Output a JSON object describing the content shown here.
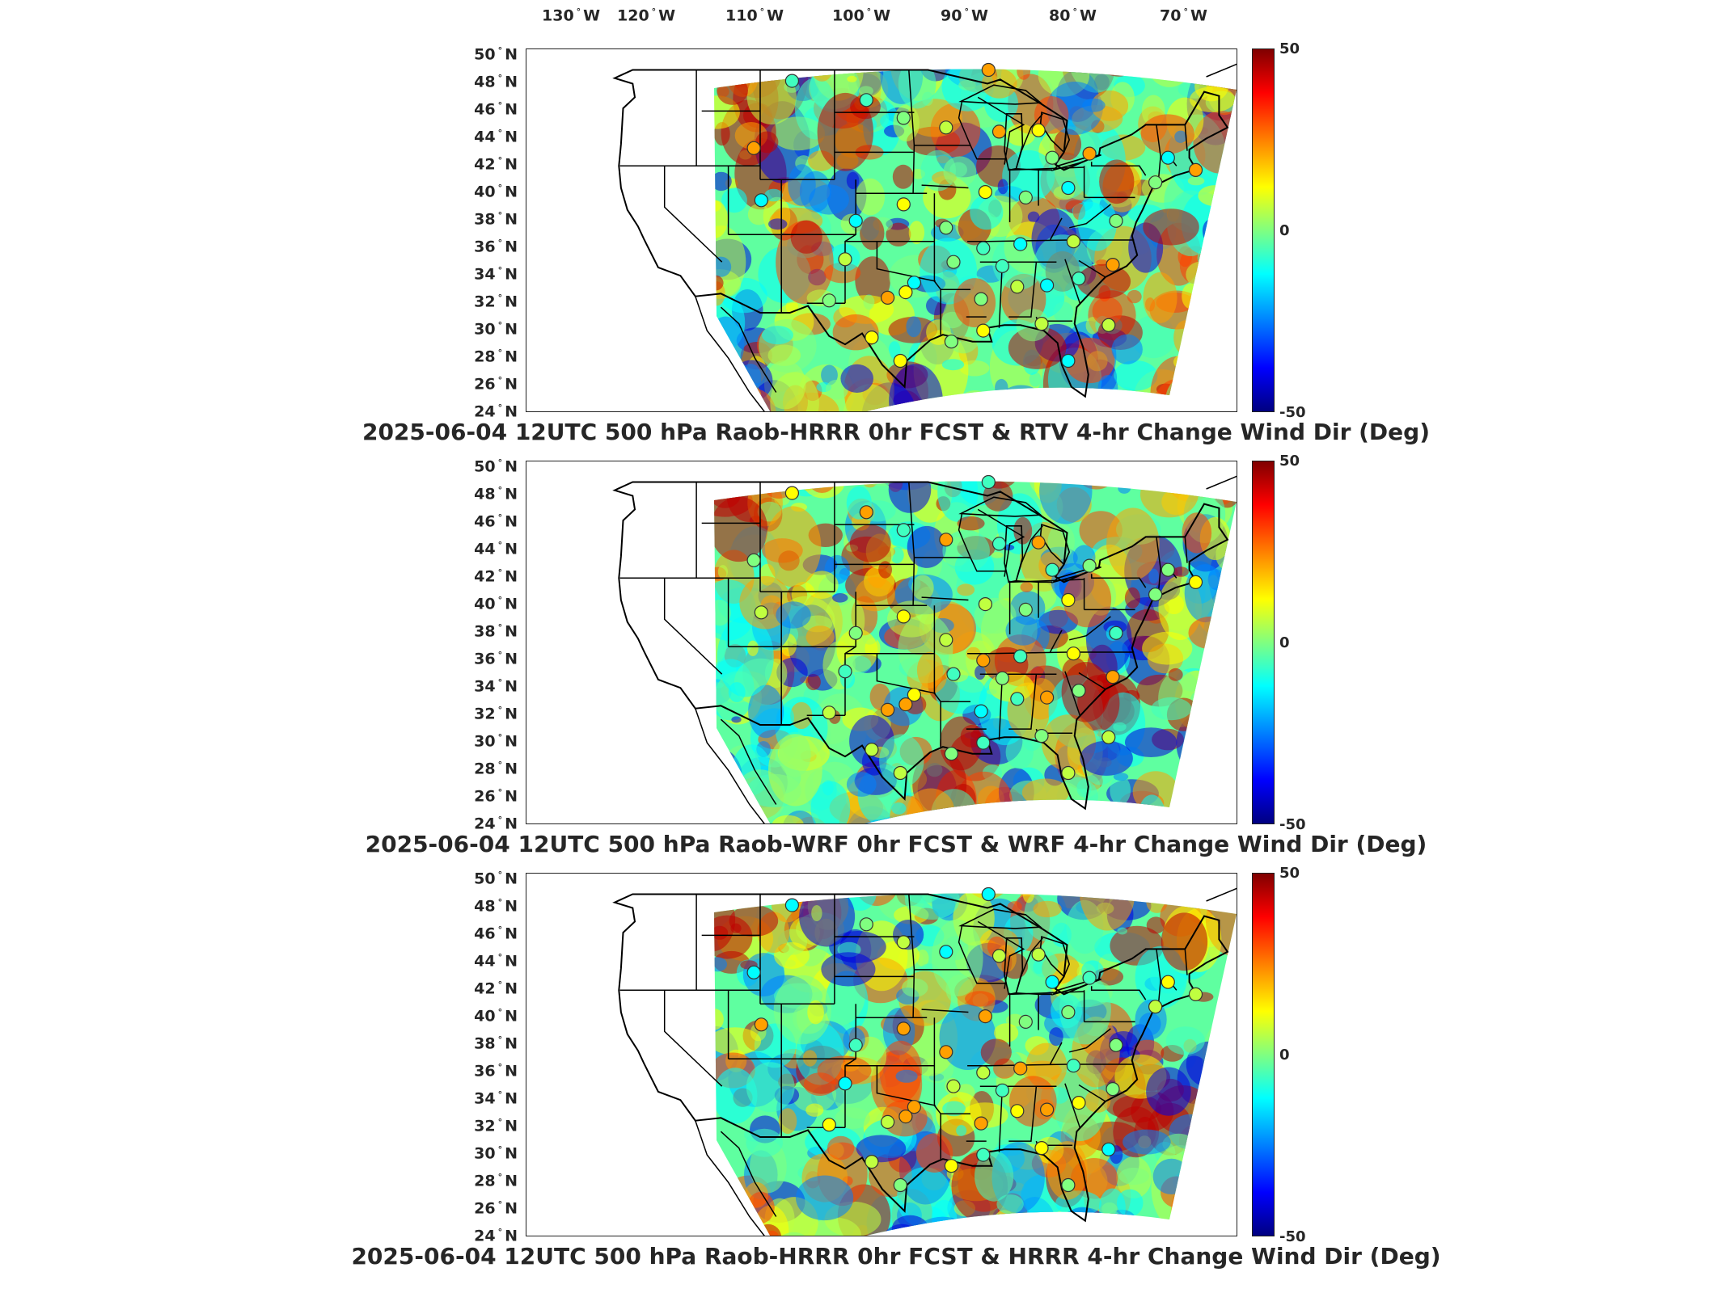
{
  "degree_symbol": "°",
  "lon_labels": [
    {
      "lon": 130,
      "text": "130",
      "hemi": "W"
    },
    {
      "lon": 120,
      "text": "120",
      "hemi": "W"
    },
    {
      "lon": 110,
      "text": "110",
      "hemi": "W"
    },
    {
      "lon": 100,
      "text": "100",
      "hemi": "W"
    },
    {
      "lon": 90,
      "text": "90",
      "hemi": "W"
    },
    {
      "lon": 80,
      "text": "80",
      "hemi": "W"
    },
    {
      "lon": 70,
      "text": "70",
      "hemi": "W"
    }
  ],
  "lat_labels": [
    {
      "lat": 50,
      "text": "50",
      "hemi": "N"
    },
    {
      "lat": 48,
      "text": "48",
      "hemi": "N"
    },
    {
      "lat": 46,
      "text": "46",
      "hemi": "N"
    },
    {
      "lat": 44,
      "text": "44",
      "hemi": "N"
    },
    {
      "lat": 42,
      "text": "42",
      "hemi": "N"
    },
    {
      "lat": 40,
      "text": "40",
      "hemi": "N"
    },
    {
      "lat": 38,
      "text": "38",
      "hemi": "N"
    },
    {
      "lat": 36,
      "text": "36",
      "hemi": "N"
    },
    {
      "lat": 34,
      "text": "34",
      "hemi": "N"
    },
    {
      "lat": 32,
      "text": "32",
      "hemi": "N"
    },
    {
      "lat": 30,
      "text": "30",
      "hemi": "N"
    },
    {
      "lat": 28,
      "text": "28",
      "hemi": "N"
    },
    {
      "lat": 26,
      "text": "26",
      "hemi": "N"
    },
    {
      "lat": 24,
      "text": "24",
      "hemi": "N"
    }
  ],
  "colorbar": {
    "max_label": "50",
    "mid_label": "0",
    "min_label": "-50",
    "range": [
      -50,
      50
    ]
  },
  "panels": [
    {
      "title": "2025-06-04 12UTC 500 hPa Raob-HRRR 0hr FCST & RTV 4-hr Change Wind Dir (Deg)"
    },
    {
      "title": "2025-06-04 12UTC 500 hPa Raob-WRF 0hr FCST & WRF 4-hr Change Wind Dir (Deg)"
    },
    {
      "title": "2025-06-04 12UTC 500 hPa Raob-HRRR 0hr FCST & HRRR 4-hr Change Wind Dir (Deg)"
    }
  ]
}
